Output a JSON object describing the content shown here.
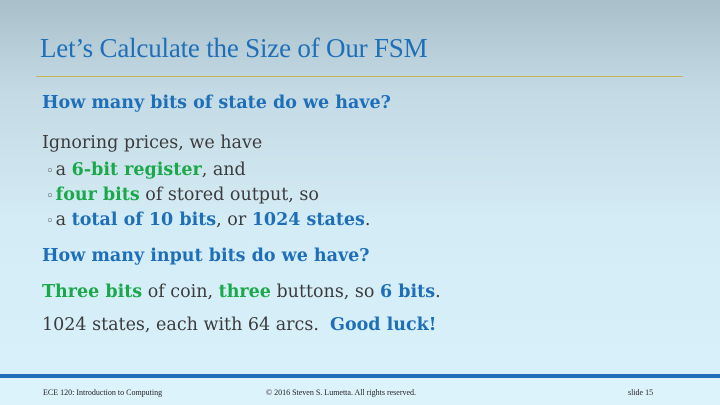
{
  "slide": {
    "title": "Let’s Calculate the Size of Our FSM"
  },
  "content": {
    "q1": "How many bits of state do we have?",
    "intro": "Ignoring prices, we have",
    "b1": {
      "pre": "a ",
      "em": "6-bit register",
      "post": ", and"
    },
    "b2": {
      "em": "four bits",
      "post": " of stored output, so"
    },
    "b3": {
      "pre": "a ",
      "em1": "total of 10 bits",
      "mid": ", or ",
      "em2": "1024 states",
      "post": "."
    },
    "q2": "How many input bits do we have?",
    "l2": {
      "em1": "Three bits",
      "mid1": " of coin, ",
      "em2": "three",
      "mid2": " buttons, so ",
      "em3": "6 bits",
      "post": "."
    },
    "l3": {
      "text": "1024 states, each with 64 arcs.  ",
      "em": "Good luck!"
    }
  },
  "footer": {
    "course": "ECE 120: Introduction to Computing",
    "copyright": "© 2016 Steven S. Lumetta.  All rights reserved.",
    "slide": "slide 15"
  }
}
